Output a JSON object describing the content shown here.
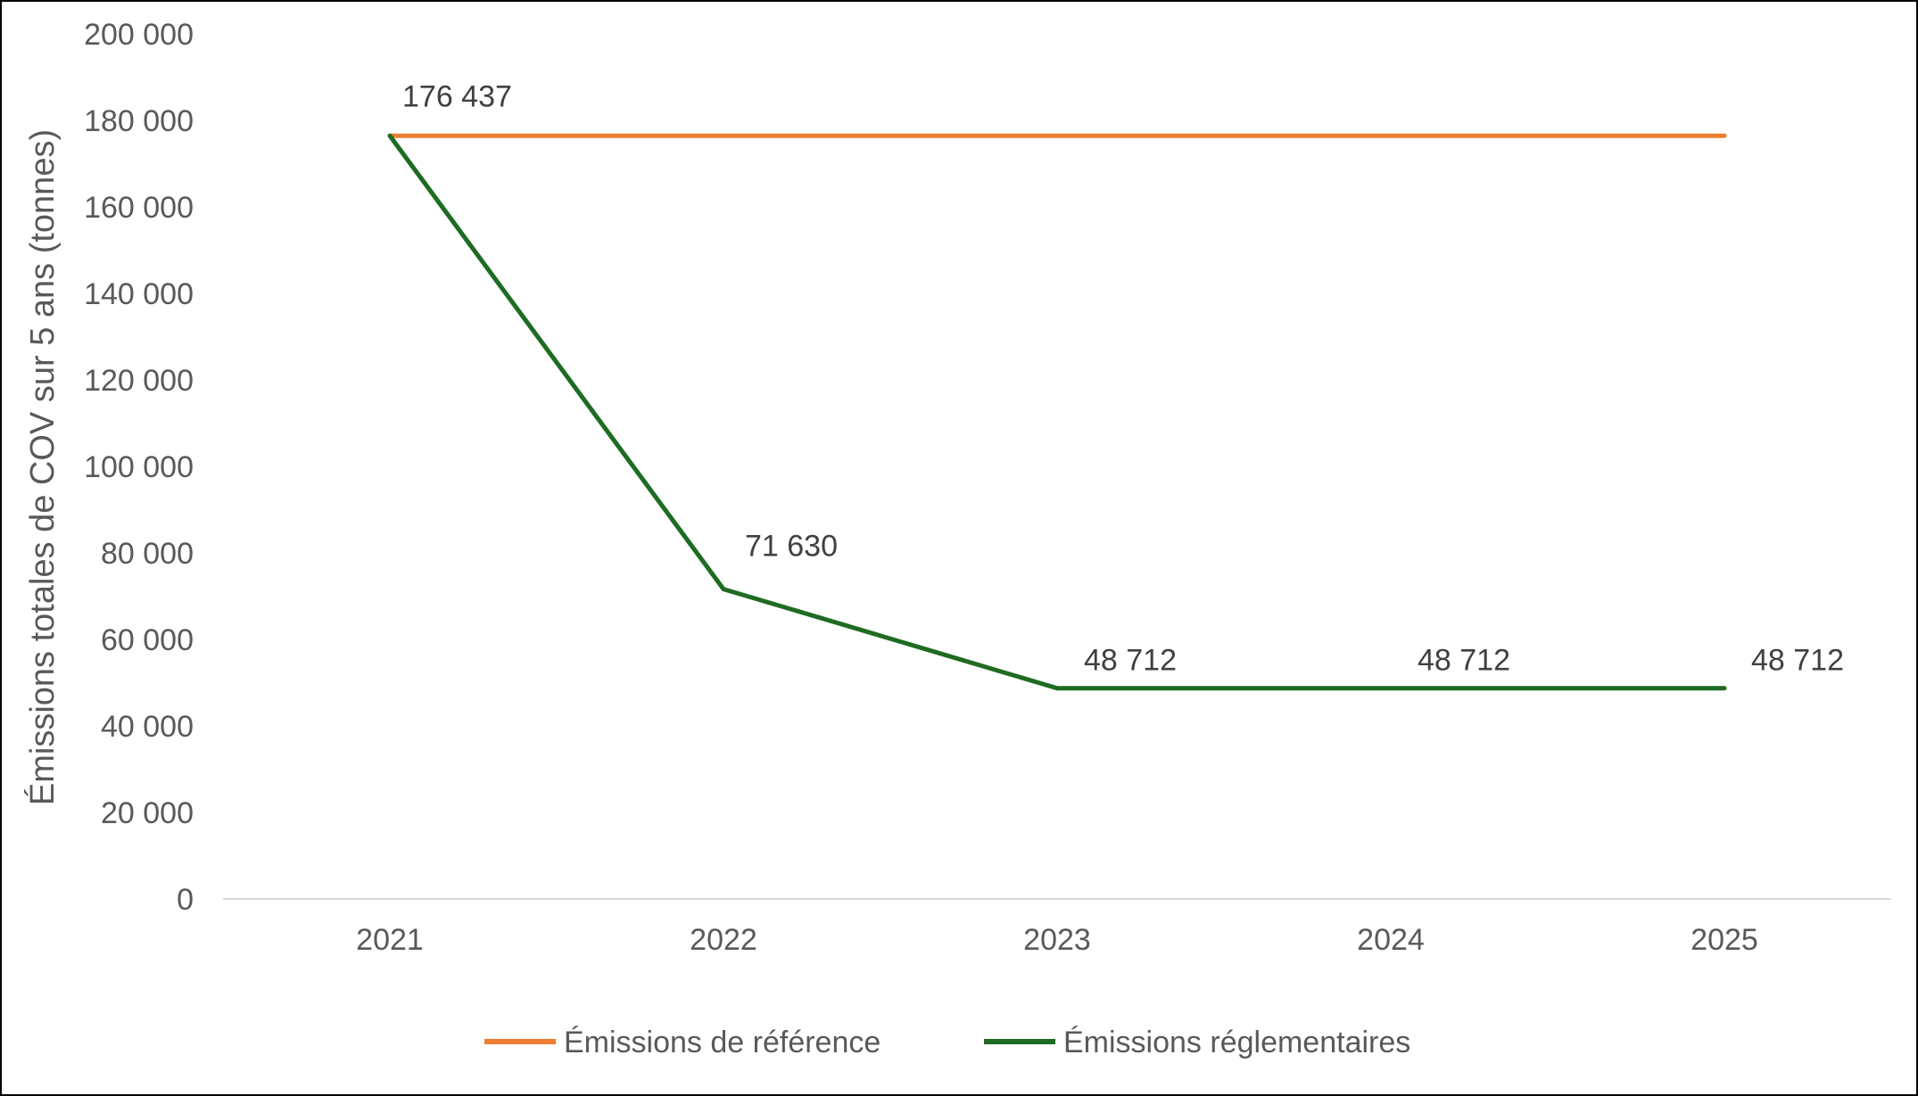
{
  "chart_data": {
    "type": "line",
    "categories": [
      "2021",
      "2022",
      "2023",
      "2024",
      "2025"
    ],
    "series": [
      {
        "name": "Émissions de référence",
        "color": "#ED7D31",
        "values": [
          176437,
          176437,
          176437,
          176437,
          176437
        ],
        "data_labels": [
          "176 437",
          "",
          "",
          "",
          ""
        ]
      },
      {
        "name": "Émissions réglementaires",
        "color": "#1E6B22",
        "values": [
          176437,
          71630,
          48712,
          48712,
          48712
        ],
        "data_labels": [
          "",
          "71 630",
          "48 712",
          "48 712",
          "48 712"
        ]
      }
    ],
    "title": "",
    "xlabel": "",
    "ylabel": "Émissions totales de COV sur 5 ans (tonnes)",
    "ylim": [
      0,
      200000
    ],
    "yticks": [
      0,
      20000,
      40000,
      60000,
      80000,
      100000,
      120000,
      140000,
      160000,
      180000,
      200000
    ],
    "ytick_labels": [
      "0",
      "20 000",
      "40 000",
      "60 000",
      "80 000",
      "100 000",
      "120 000",
      "140 000",
      "160 000",
      "180 000",
      "200 000"
    ],
    "grid": false,
    "legend_position": "bottom"
  }
}
